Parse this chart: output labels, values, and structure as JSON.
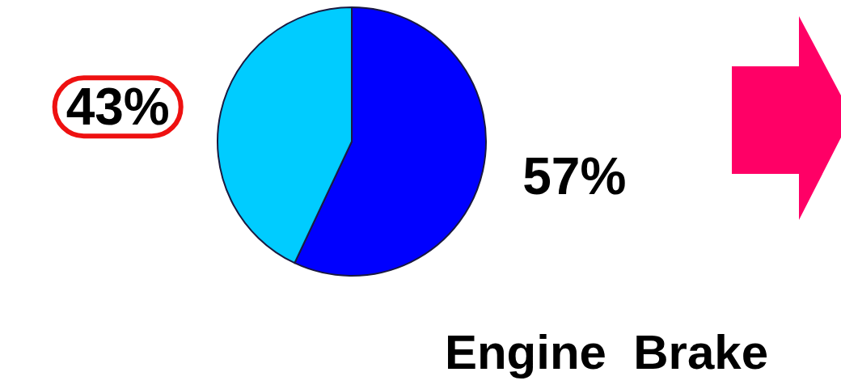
{
  "chart_data": {
    "type": "pie",
    "title": "Engine  Brake",
    "categories": [
      null,
      null
    ],
    "values": [
      57,
      43
    ],
    "value_labels": [
      "57%",
      "43%"
    ],
    "colors": [
      "#0000ff",
      "#00ccff"
    ]
  }
}
